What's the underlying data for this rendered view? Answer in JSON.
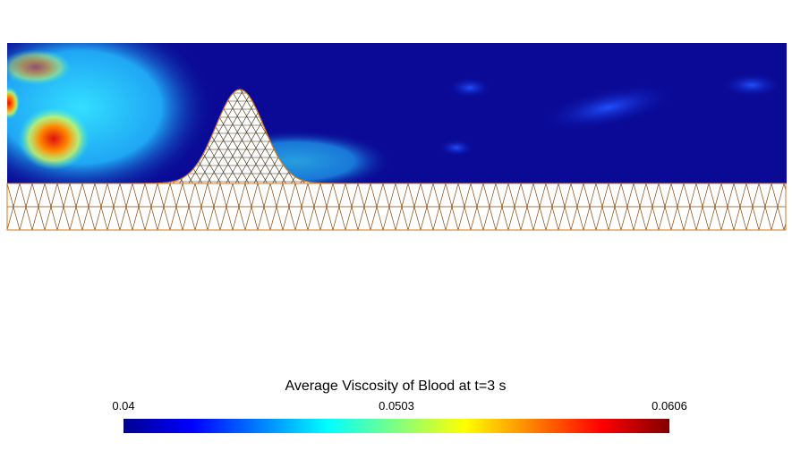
{
  "colorbar": {
    "title": "Average Viscosity of Blood at t=3 s",
    "ticks": [
      0.04,
      0.0503,
      0.0606
    ]
  }
}
